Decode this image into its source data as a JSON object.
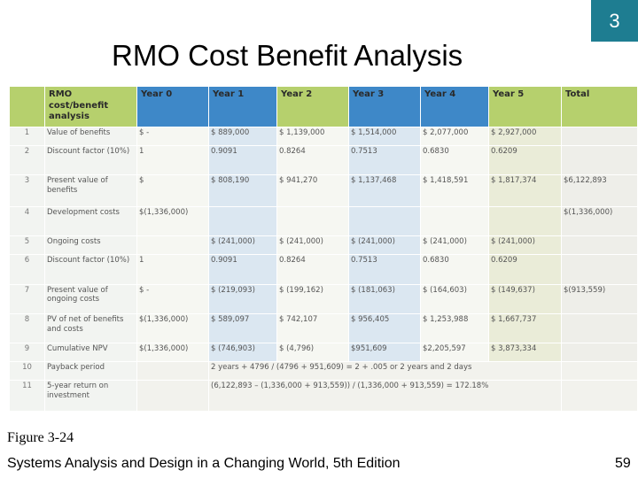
{
  "slide_number": "3",
  "title": "RMO Cost Benefit Analysis",
  "table": {
    "header": [
      "",
      "RMO cost/benefit analysis",
      "Year 0",
      "Year 1",
      "Year 2",
      "Year 3",
      "Year 4",
      "Year 5",
      "Total"
    ],
    "rows": [
      {
        "num": "1",
        "label": "Value of benefits",
        "cells": [
          "$ -",
          "$ 889,000",
          "$ 1,139,000",
          "$ 1,514,000",
          "$ 2,077,000",
          "$ 2,927,000",
          ""
        ]
      },
      {
        "num": "2",
        "label": "Discount factor (10%)",
        "cells": [
          "1",
          "0.9091",
          "0.8264",
          "0.7513",
          "0.6830",
          "0.6209",
          ""
        ]
      },
      {
        "num": "3",
        "label": "Present value of benefits",
        "cells": [
          "$",
          "$ 808,190",
          "$ 941,270",
          "$ 1,137,468",
          "$ 1,418,591",
          "$ 1,817,374",
          "$6,122,893"
        ]
      },
      {
        "num": "4",
        "label": "Development costs",
        "cells": [
          "$(1,336,000)",
          "",
          "",
          "",
          "",
          "",
          "$(1,336,000)"
        ]
      },
      {
        "num": "5",
        "label": "Ongoing costs",
        "cells": [
          "",
          "$ (241,000)",
          "$ (241,000)",
          "$ (241,000)",
          "$ (241,000)",
          "$ (241,000)",
          ""
        ]
      },
      {
        "num": "6",
        "label": "Discount factor (10%)",
        "cells": [
          "1",
          "0.9091",
          "0.8264",
          "0.7513",
          "0.6830",
          "0.6209",
          ""
        ]
      },
      {
        "num": "7",
        "label": "Present value of ongoing costs",
        "cells": [
          "$ -",
          "$ (219,093)",
          "$ (199,162)",
          "$ (181,063)",
          "$ (164,603)",
          "$ (149,637)",
          "$(913,559)"
        ]
      },
      {
        "num": "8",
        "label": "PV of net of benefits and costs",
        "cells": [
          "$(1,336,000)",
          "$ 589,097",
          "$ 742,107",
          "$ 956,405",
          "$ 1,253,988",
          "$ 1,667,737",
          ""
        ]
      },
      {
        "num": "9",
        "label": "Cumulative NPV",
        "cells": [
          "$(1,336,000)",
          "$ (746,903)",
          "$ (4,796)",
          "$951,609",
          "$2,205,597",
          "$ 3,873,334",
          ""
        ]
      }
    ],
    "payback": {
      "num": "10",
      "label": "Payback period",
      "value": "2 years + 4796 / (4796 + 951,609) = 2 + .005 or 2 years and 2 days"
    },
    "return": {
      "num": "11",
      "label": "5-year return on investment",
      "value": "(6,122,893 – (1,336,000 + 913,559)) / (1,336,000 + 913,559) = 172.18%"
    }
  },
  "figure_caption": "Figure 3-24",
  "footer": "Systems Analysis and Design in a Changing World, 5th Edition",
  "page_number": "59",
  "colors": {
    "header_blue": "#3e88c8",
    "header_green": "#b6d06d",
    "slide_number_bg": "#1e7d91"
  }
}
